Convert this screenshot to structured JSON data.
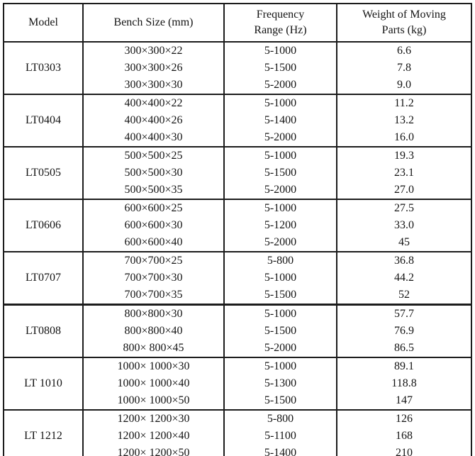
{
  "table": {
    "columns": [
      "Model",
      "Bench Size (mm)",
      "Frequency Range (Hz)",
      "Weight of Moving Parts (kg)"
    ],
    "header": {
      "model": "Model",
      "bench": "Bench Size (mm)",
      "freq_line1": "Frequency",
      "freq_line2": "Range (Hz)",
      "weight_line1": "Weight of Moving",
      "weight_line2": "Parts (kg)"
    },
    "groups": [
      {
        "model": "LT0303",
        "rows": [
          {
            "size": "300×300×22",
            "freq": "5-1000",
            "weight": "6.6"
          },
          {
            "size": "300×300×26",
            "freq": "5-1500",
            "weight": "7.8"
          },
          {
            "size": "300×300×30",
            "freq": "5-2000",
            "weight": "9.0"
          }
        ]
      },
      {
        "model": "LT0404",
        "rows": [
          {
            "size": "400×400×22",
            "freq": "5-1000",
            "weight": "11.2"
          },
          {
            "size": "400×400×26",
            "freq": "5-1400",
            "weight": "13.2"
          },
          {
            "size": "400×400×30",
            "freq": "5-2000",
            "weight": "16.0"
          }
        ]
      },
      {
        "model": "LT0505",
        "rows": [
          {
            "size": "500×500×25",
            "freq": "5-1000",
            "weight": "19.3"
          },
          {
            "size": "500×500×30",
            "freq": "5-1500",
            "weight": "23.1"
          },
          {
            "size": "500×500×35",
            "freq": "5-2000",
            "weight": "27.0"
          }
        ]
      },
      {
        "model": "LT0606",
        "rows": [
          {
            "size": "600×600×25",
            "freq": "5-1000",
            "weight": "27.5"
          },
          {
            "size": "600×600×30",
            "freq": "5-1200",
            "weight": "33.0"
          },
          {
            "size": "600×600×40",
            "freq": "5-2000",
            "weight": "45"
          }
        ]
      },
      {
        "model": "LT0707",
        "rows": [
          {
            "size": "700×700×25",
            "freq": "5-800",
            "weight": "36.8"
          },
          {
            "size": "700×700×30",
            "freq": "5-1000",
            "weight": "44.2"
          },
          {
            "size": "700×700×35",
            "freq": "5-1500",
            "weight": "52"
          }
        ]
      },
      {
        "model": "LT0808",
        "rows": [
          {
            "size": "800×800×30",
            "freq": "5-1000",
            "weight": "57.7"
          },
          {
            "size": "800×800×40",
            "freq": "5-1500",
            "weight": "76.9"
          },
          {
            "size": "800× 800×45",
            "freq": "5-2000",
            "weight": "86.5"
          }
        ]
      },
      {
        "model": "LT 1010",
        "rows": [
          {
            "size": "1000× 1000×30",
            "freq": "5-1000",
            "weight": "89.1"
          },
          {
            "size": "1000× 1000×40",
            "freq": "5-1300",
            "weight": "118.8"
          },
          {
            "size": "1000× 1000×50",
            "freq": "5-1500",
            "weight": "147"
          }
        ]
      },
      {
        "model": "LT 1212",
        "rows": [
          {
            "size": "1200× 1200×30",
            "freq": "5-800",
            "weight": "126"
          },
          {
            "size": "1200× 1200×40",
            "freq": "5-1100",
            "weight": "168"
          },
          {
            "size": "1200× 1200×50",
            "freq": "5-1400",
            "weight": "210"
          }
        ]
      }
    ]
  }
}
